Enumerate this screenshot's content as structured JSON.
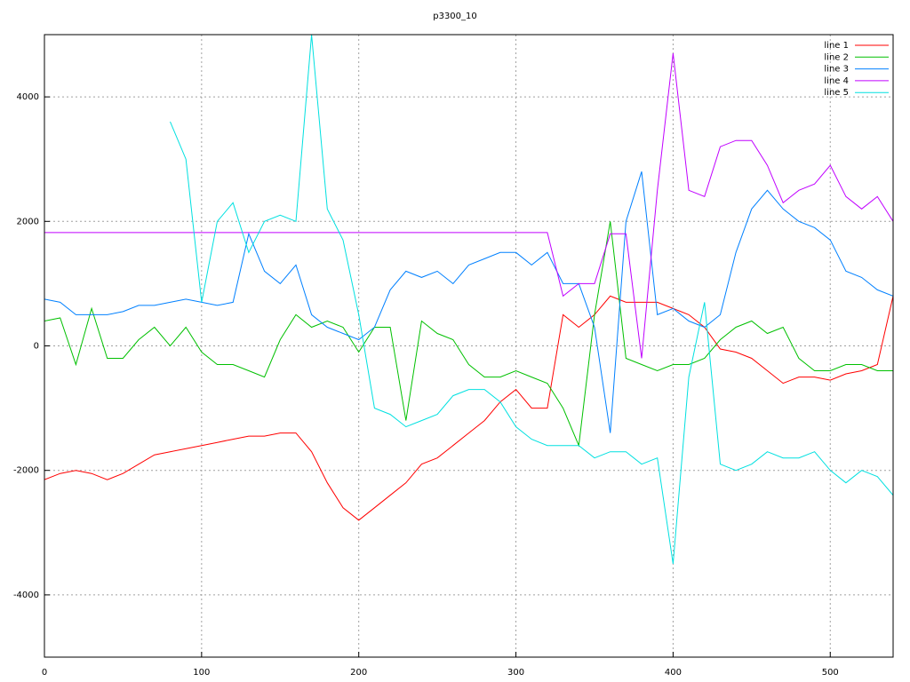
{
  "chart_data": {
    "type": "line",
    "title": "p3300_10",
    "x": [
      0,
      10,
      20,
      30,
      40,
      50,
      60,
      70,
      80,
      90,
      100,
      110,
      120,
      130,
      140,
      150,
      160,
      170,
      180,
      190,
      200,
      210,
      220,
      230,
      240,
      250,
      260,
      270,
      280,
      290,
      300,
      310,
      320,
      330,
      340,
      350,
      360,
      370,
      380,
      390,
      400,
      410,
      420,
      430,
      440,
      450,
      460,
      470,
      480,
      490,
      500,
      510,
      520,
      530,
      540
    ],
    "xlim": [
      0,
      540
    ],
    "ylim": [
      -5000,
      5000
    ],
    "xticks": [
      0,
      100,
      200,
      300,
      400,
      500
    ],
    "yticks": [
      -4000,
      -2000,
      0,
      2000,
      4000
    ],
    "grid": true,
    "legend": "top-right",
    "series": [
      {
        "name": "line 1",
        "color": "#ff0000",
        "values": [
          -2150,
          -2050,
          -2000,
          -2050,
          -2150,
          -2050,
          -1900,
          -1750,
          -1700,
          -1650,
          -1600,
          -1550,
          -1500,
          -1450,
          -1450,
          -1400,
          -1400,
          -1700,
          -2200,
          -2600,
          -2800,
          -2600,
          -2400,
          -2200,
          -1900,
          -1800,
          -1600,
          -1400,
          -1200,
          -900,
          -700,
          -1000,
          -1000,
          500,
          300,
          500,
          800,
          700,
          700,
          700,
          600,
          500,
          300,
          -50,
          -100,
          -200,
          -400,
          -600,
          -500,
          -500,
          -550,
          -450,
          -400,
          -300,
          800
        ]
      },
      {
        "name": "line 2",
        "color": "#00c000",
        "values": [
          400,
          450,
          -300,
          600,
          -200,
          -200,
          100,
          300,
          0,
          300,
          -100,
          -300,
          -300,
          -400,
          -500,
          100,
          500,
          300,
          400,
          300,
          -100,
          300,
          300,
          -1200,
          400,
          200,
          100,
          -300,
          -500,
          -500,
          -400,
          -500,
          -600,
          -1000,
          -1600,
          500,
          2000,
          -200,
          -300,
          -400,
          -300,
          -300,
          -200,
          100,
          300,
          400,
          200,
          300,
          -200,
          -400,
          -400,
          -300,
          -300,
          -400,
          -400
        ]
      },
      {
        "name": "line 3",
        "color": "#0080ff",
        "values": [
          750,
          700,
          500,
          500,
          500,
          550,
          650,
          650,
          700,
          750,
          700,
          650,
          700,
          1800,
          1200,
          1000,
          1300,
          500,
          300,
          200,
          100,
          300,
          900,
          1200,
          1100,
          1200,
          1000,
          1300,
          1400,
          1500,
          1500,
          1300,
          1500,
          1000,
          1000,
          300,
          -1400,
          2000,
          2800,
          500,
          600,
          400,
          300,
          500,
          1500,
          2200,
          2500,
          2200,
          2000,
          1900,
          1700,
          1200,
          1100,
          900,
          800
        ]
      },
      {
        "name": "line 4",
        "color": "#c000ff",
        "values": [
          1820,
          1820,
          1820,
          1820,
          1820,
          1820,
          1820,
          1820,
          1820,
          1820,
          1820,
          1820,
          1820,
          1820,
          1820,
          1820,
          1820,
          1820,
          1820,
          1820,
          1820,
          1820,
          1820,
          1820,
          1820,
          1820,
          1820,
          1820,
          1820,
          1820,
          1820,
          1820,
          1820,
          800,
          1000,
          1000,
          1800,
          1800,
          -200,
          2500,
          4700,
          2500,
          2400,
          3200,
          3300,
          3300,
          2900,
          2300,
          2500,
          2600,
          2900,
          2400,
          2200,
          2400,
          2000
        ]
      },
      {
        "name": "line 5",
        "color": "#00e0e0",
        "values": [
          null,
          null,
          null,
          null,
          null,
          null,
          null,
          null,
          3600,
          3000,
          700,
          2000,
          2300,
          1500,
          2000,
          2100,
          2000,
          5000,
          2200,
          1700,
          500,
          -1000,
          -1100,
          -1300,
          -1200,
          -1100,
          -800,
          -700,
          -700,
          -900,
          -1300,
          -1500,
          -1600,
          -1600,
          -1600,
          -1800,
          -1700,
          -1700,
          -1900,
          -1800,
          -3500,
          -500,
          700,
          -1900,
          -2000,
          -1900,
          -1700,
          -1800,
          -1800,
          -1700,
          -2000,
          -2200,
          -2000,
          -2100,
          -2400
        ]
      }
    ]
  }
}
